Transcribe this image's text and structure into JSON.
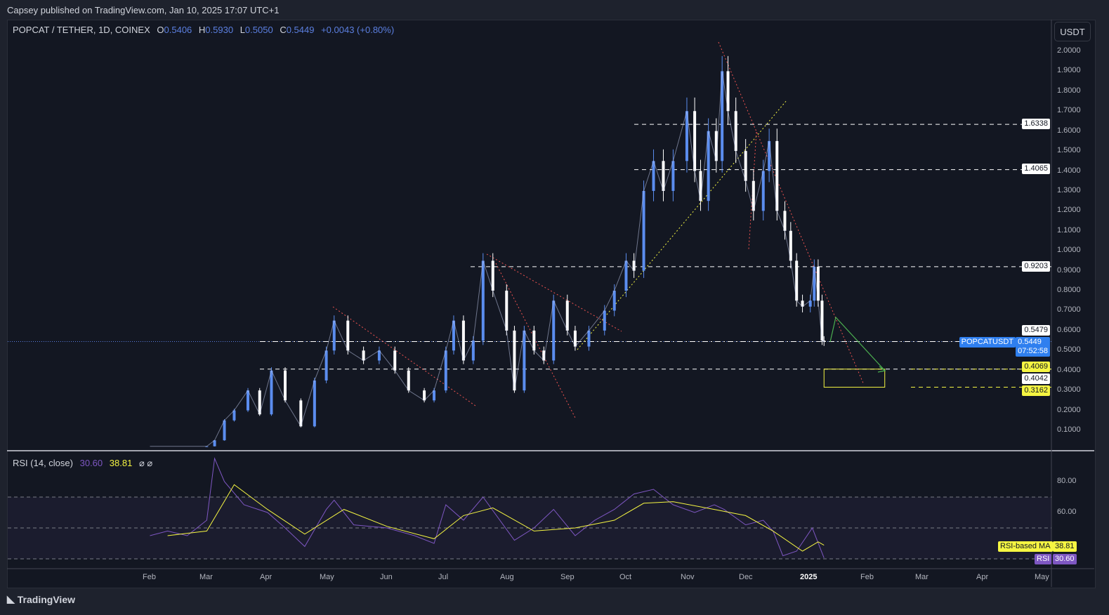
{
  "publisher_line": "Capsey published on TradingView.com, Jan 10, 2025 17:07 UTC+1",
  "legend": {
    "symbol": "POPCAT / TETHER, 1D, COINEX",
    "o_label": "O",
    "open": "0.5406",
    "h_label": "H",
    "high": "0.5930",
    "l_label": "L",
    "low": "0.5050",
    "c_label": "C",
    "close": "0.5449",
    "change": "+0.0043 (+0.80%)"
  },
  "currency_button": "USDT",
  "rsi_legend": {
    "name": "RSI (14, close)",
    "rsi": "30.60",
    "ma": "38.81",
    "icons": "⌀ ⌀"
  },
  "price_labels": {
    "last_symbol": "POPCATUSDT",
    "last": "0.5449",
    "countdown": "07:52:58",
    "l1": "1.6338",
    "l2": "1.4065",
    "l3": "0.9203",
    "l4": "0.5479",
    "l5": "0.4069",
    "l6": "0.4042",
    "l7": "0.3162"
  },
  "rsi_labels": {
    "ma_name": "RSI-based MA",
    "ma": "38.81",
    "rsi_name": "RSI",
    "rsi": "30.60"
  },
  "brand": "TradingView",
  "colors": {
    "up": "#5b8def",
    "down": "#ffffff",
    "rsi": "#7e57c2",
    "rsi_ma": "#f5f542",
    "zone": "#f5f542",
    "arrow": "#4caf50"
  },
  "chart_data": [
    {
      "type": "candlestick",
      "title": "POPCAT / TETHER, 1D, COINEX",
      "y_ticks": [
        "2.0000",
        "1.9000",
        "1.8000",
        "1.7000",
        "1.6000",
        "1.5000",
        "1.4000",
        "1.3000",
        "1.2000",
        "1.1000",
        "1.0000",
        "0.9000",
        "0.8000",
        "0.7000",
        "0.6000",
        "0.5000",
        "0.4000",
        "0.3000",
        "0.2000",
        "0.1000"
      ],
      "x_ticks": [
        "Feb",
        "Mar",
        "Apr",
        "May",
        "Jun",
        "Jul",
        "Aug",
        "Sep",
        "Oct",
        "Nov",
        "Dec",
        "2025",
        "Feb",
        "Mar",
        "Apr",
        "May"
      ],
      "ylim": [
        0,
        2.05
      ],
      "xlim": [
        "2024-01-01",
        "2025-05-15"
      ],
      "horizontal_levels": [
        1.6338,
        1.4065,
        0.9203,
        0.5449,
        0.4069,
        0.3162
      ],
      "target_zone": [
        0.3162,
        0.4069
      ],
      "closes": [
        [
          "2024-02-01",
          0.02
        ],
        [
          "2024-03-01",
          0.02
        ],
        [
          "2024-03-05",
          0.05
        ],
        [
          "2024-03-10",
          0.15
        ],
        [
          "2024-03-15",
          0.2
        ],
        [
          "2024-03-22",
          0.3
        ],
        [
          "2024-03-28",
          0.18
        ],
        [
          "2024-04-03",
          0.4
        ],
        [
          "2024-04-10",
          0.25
        ],
        [
          "2024-04-18",
          0.12
        ],
        [
          "2024-04-25",
          0.35
        ],
        [
          "2024-05-01",
          0.5
        ],
        [
          "2024-05-05",
          0.65
        ],
        [
          "2024-05-12",
          0.5
        ],
        [
          "2024-05-20",
          0.45
        ],
        [
          "2024-05-28",
          0.5
        ],
        [
          "2024-06-05",
          0.4
        ],
        [
          "2024-06-12",
          0.3
        ],
        [
          "2024-06-20",
          0.25
        ],
        [
          "2024-06-25",
          0.3
        ],
        [
          "2024-07-01",
          0.5
        ],
        [
          "2024-07-05",
          0.65
        ],
        [
          "2024-07-10",
          0.45
        ],
        [
          "2024-07-15",
          0.55
        ],
        [
          "2024-07-20",
          0.95
        ],
        [
          "2024-07-25",
          0.8
        ],
        [
          "2024-08-01",
          0.6
        ],
        [
          "2024-08-05",
          0.3
        ],
        [
          "2024-08-10",
          0.6
        ],
        [
          "2024-08-15",
          0.5
        ],
        [
          "2024-08-20",
          0.45
        ],
        [
          "2024-08-25",
          0.75
        ],
        [
          "2024-09-01",
          0.6
        ],
        [
          "2024-09-05",
          0.52
        ],
        [
          "2024-09-12",
          0.6
        ],
        [
          "2024-09-20",
          0.7
        ],
        [
          "2024-09-25",
          0.8
        ],
        [
          "2024-10-01",
          0.95
        ],
        [
          "2024-10-05",
          0.9
        ],
        [
          "2024-10-10",
          1.3
        ],
        [
          "2024-10-15",
          1.45
        ],
        [
          "2024-10-20",
          1.3
        ],
        [
          "2024-10-25",
          1.45
        ],
        [
          "2024-11-01",
          1.7
        ],
        [
          "2024-11-05",
          1.4
        ],
        [
          "2024-11-08",
          1.25
        ],
        [
          "2024-11-12",
          1.6
        ],
        [
          "2024-11-16",
          1.45
        ],
        [
          "2024-11-19",
          1.9
        ],
        [
          "2024-11-22",
          1.7
        ],
        [
          "2024-11-26",
          1.5
        ],
        [
          "2024-12-01",
          1.35
        ],
        [
          "2024-12-05",
          1.2
        ],
        [
          "2024-12-10",
          1.4
        ],
        [
          "2024-12-13",
          1.55
        ],
        [
          "2024-12-17",
          1.2
        ],
        [
          "2024-12-21",
          1.1
        ],
        [
          "2024-12-24",
          0.95
        ],
        [
          "2024-12-27",
          0.75
        ],
        [
          "2024-12-30",
          0.72
        ],
        [
          "2025-01-03",
          0.75
        ],
        [
          "2025-01-05",
          0.92
        ],
        [
          "2025-01-07",
          0.75
        ],
        [
          "2025-01-09",
          0.55
        ],
        [
          "2025-01-10",
          0.5449
        ]
      ]
    },
    {
      "type": "line",
      "title": "RSI (14, close)",
      "y_ticks": [
        "80.00",
        "60.00"
      ],
      "ylim": [
        25,
        100
      ],
      "bands": [
        30,
        50,
        70
      ],
      "series": [
        {
          "name": "RSI",
          "values": [
            [
              "2024-02-01",
              45
            ],
            [
              "2024-02-10",
              48
            ],
            [
              "2024-02-20",
              45
            ],
            [
              "2024-03-01",
              55
            ],
            [
              "2024-03-05",
              95
            ],
            [
              "2024-03-10",
              80
            ],
            [
              "2024-03-20",
              65
            ],
            [
              "2024-04-01",
              60
            ],
            [
              "2024-04-10",
              50
            ],
            [
              "2024-04-20",
              38
            ],
            [
              "2024-05-01",
              62
            ],
            [
              "2024-05-05",
              68
            ],
            [
              "2024-05-15",
              52
            ],
            [
              "2024-06-01",
              50
            ],
            [
              "2024-06-15",
              45
            ],
            [
              "2024-06-25",
              40
            ],
            [
              "2024-07-01",
              65
            ],
            [
              "2024-07-10",
              55
            ],
            [
              "2024-07-20",
              70
            ],
            [
              "2024-08-05",
              42
            ],
            [
              "2024-08-15",
              50
            ],
            [
              "2024-08-25",
              62
            ],
            [
              "2024-09-05",
              45
            ],
            [
              "2024-09-15",
              55
            ],
            [
              "2024-09-25",
              62
            ],
            [
              "2024-10-05",
              72
            ],
            [
              "2024-10-15",
              75
            ],
            [
              "2024-10-25",
              65
            ],
            [
              "2024-11-05",
              60
            ],
            [
              "2024-11-15",
              65
            ],
            [
              "2024-11-20",
              62
            ],
            [
              "2024-12-01",
              52
            ],
            [
              "2024-12-10",
              55
            ],
            [
              "2024-12-15",
              48
            ],
            [
              "2024-12-20",
              32
            ],
            [
              "2024-12-27",
              35
            ],
            [
              "2025-01-04",
              50
            ],
            [
              "2025-01-10",
              30.6
            ]
          ]
        },
        {
          "name": "RSI-based MA",
          "values": [
            [
              "2024-02-10",
              45
            ],
            [
              "2024-03-01",
              48
            ],
            [
              "2024-03-15",
              78
            ],
            [
              "2024-04-01",
              62
            ],
            [
              "2024-04-20",
              46
            ],
            [
              "2024-05-10",
              62
            ],
            [
              "2024-06-01",
              51
            ],
            [
              "2024-06-25",
              43
            ],
            [
              "2024-07-10",
              58
            ],
            [
              "2024-07-25",
              63
            ],
            [
              "2024-08-15",
              48
            ],
            [
              "2024-09-05",
              50
            ],
            [
              "2024-09-25",
              55
            ],
            [
              "2024-10-10",
              66
            ],
            [
              "2024-10-25",
              67
            ],
            [
              "2024-11-15",
              62
            ],
            [
              "2024-12-01",
              58
            ],
            [
              "2024-12-15",
              48
            ],
            [
              "2024-12-30",
              35
            ],
            [
              "2025-01-07",
              41
            ],
            [
              "2025-01-10",
              38.81
            ]
          ]
        }
      ]
    }
  ]
}
